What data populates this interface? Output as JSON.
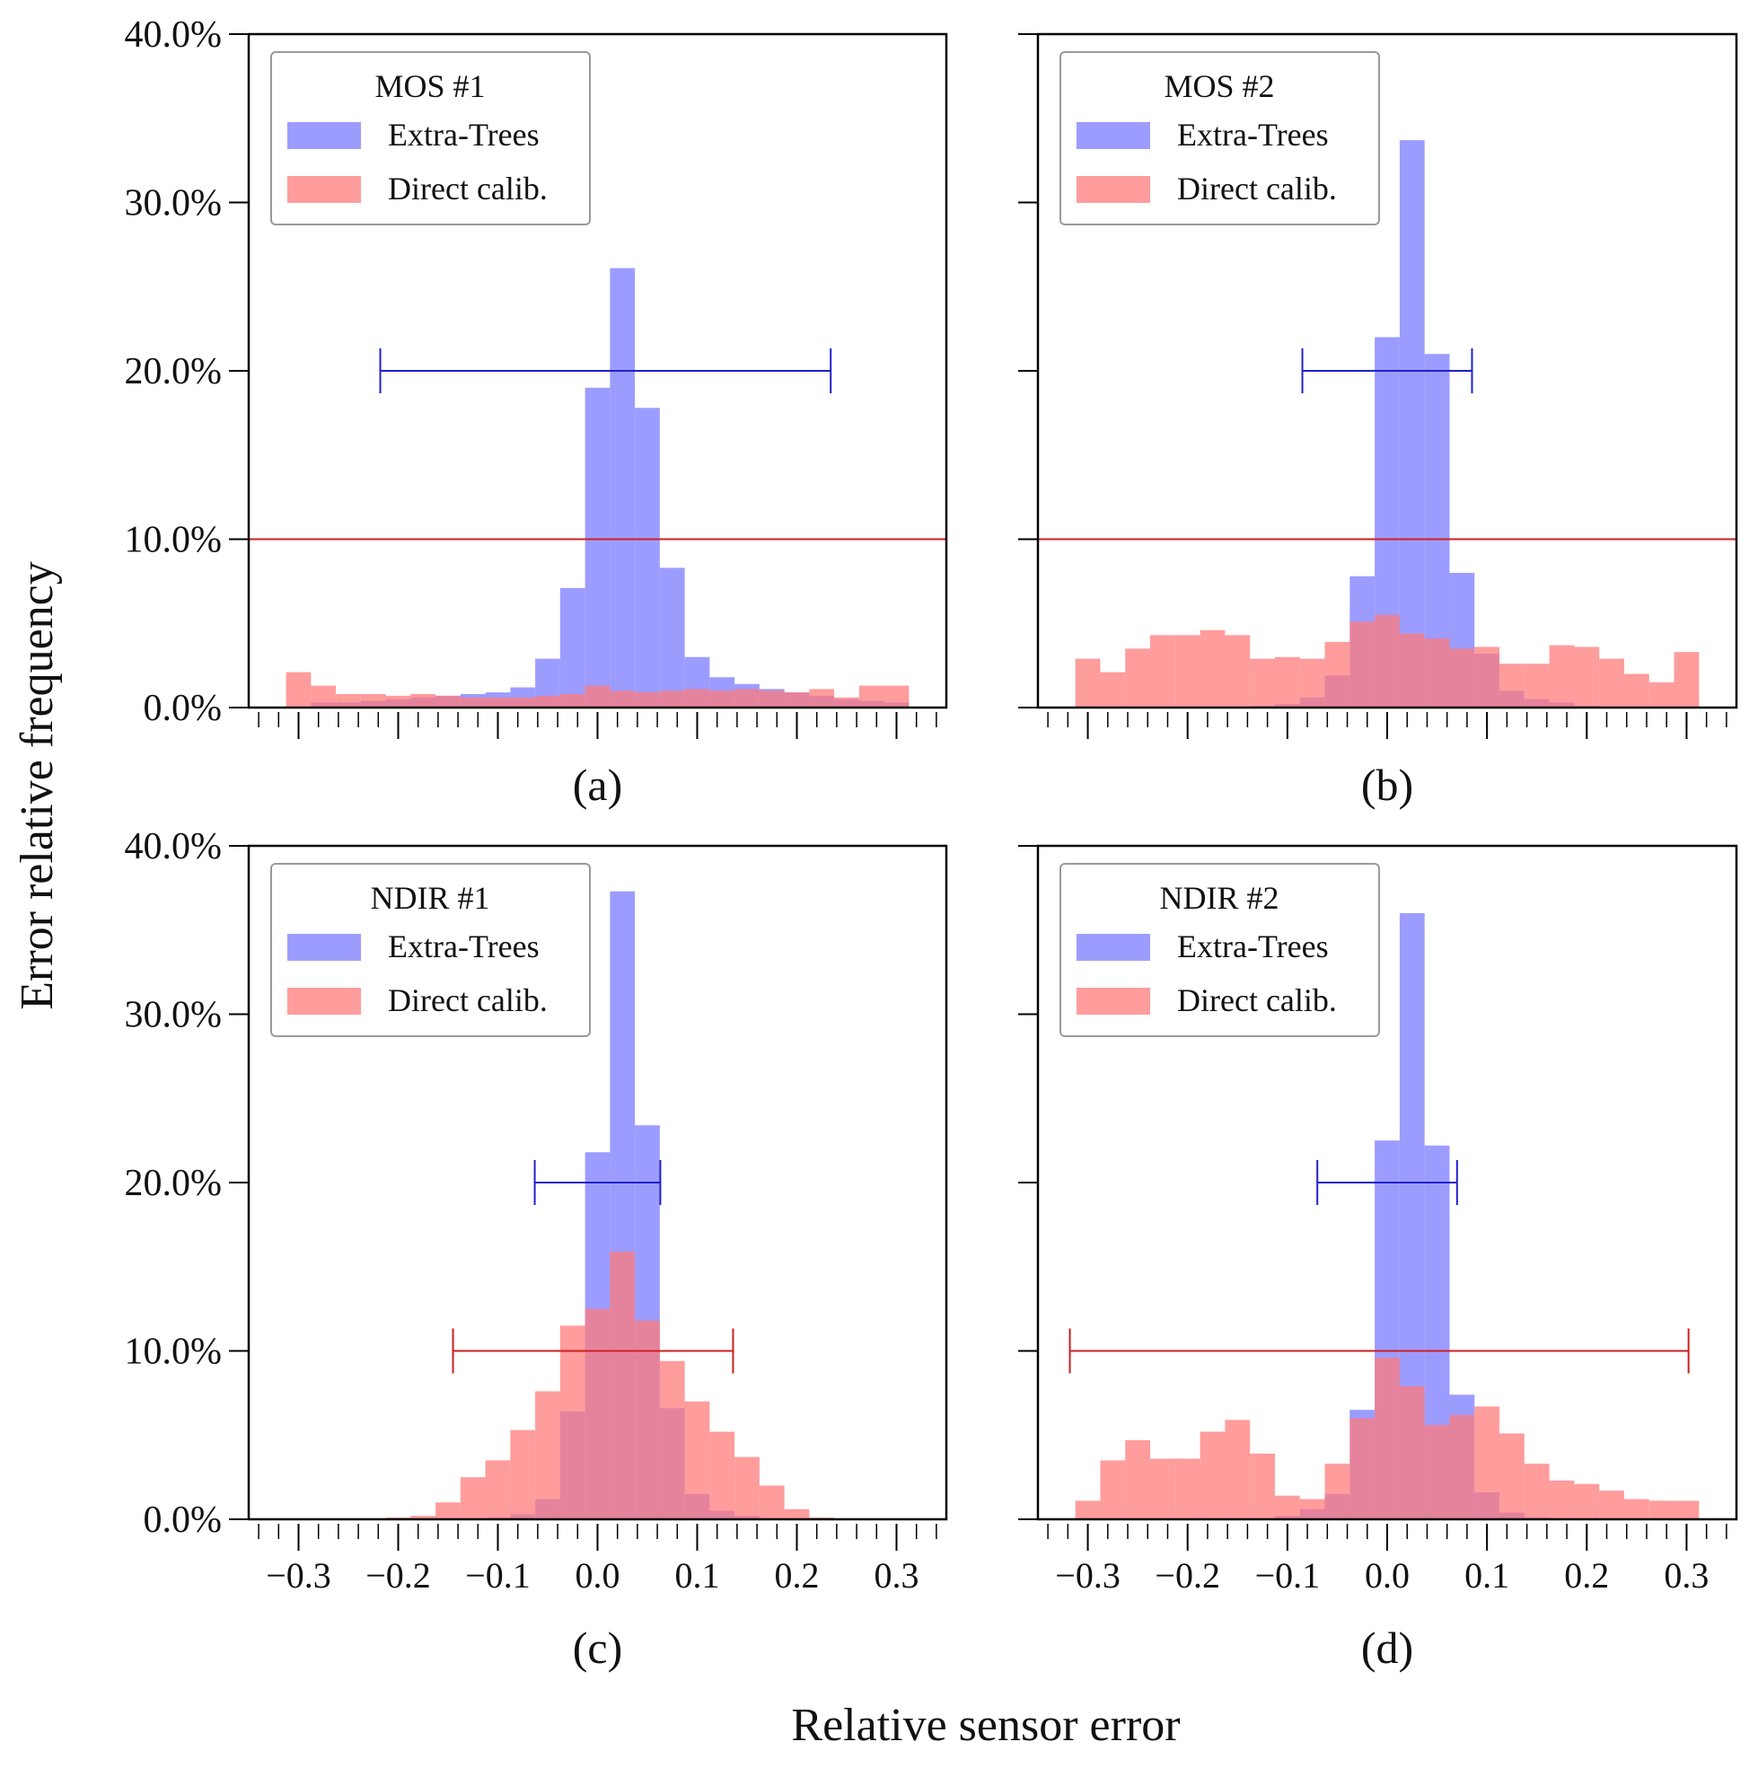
{
  "figure": {
    "ylabel": "Error relative frequency",
    "xlabel": "Relative sensor error",
    "colors": {
      "extra_trees": "#7b7bff",
      "direct_calib": "#ff7b7b",
      "extra_trees_errorbar": "#2020cc",
      "direct_calib_errorbar": "#cc2020",
      "reference_line": "#cc2020",
      "frame": "#000000"
    }
  },
  "chart_data": [
    {
      "type": "bar",
      "panel_label": "(a)",
      "legend_title": "MOS #1",
      "legend_placement": "top-left",
      "xlim": [
        -0.35,
        0.35
      ],
      "ylim": [
        0,
        40
      ],
      "xticks": [
        -0.3,
        -0.2,
        -0.1,
        0.0,
        0.1,
        0.2,
        0.3
      ],
      "xtick_labels_shown": false,
      "yticks": [
        0,
        10,
        20,
        30,
        40
      ],
      "ytick_labels": [
        "0.0%",
        "10.0%",
        "20.0%",
        "30.0%",
        "40.0%"
      ],
      "ytick_labels_shown": true,
      "bin_edges": [
        -0.3125,
        -0.2875,
        -0.2625,
        -0.2375,
        -0.2125,
        -0.1875,
        -0.1625,
        -0.1375,
        -0.1125,
        -0.0875,
        -0.0625,
        -0.0375,
        -0.0125,
        0.0125,
        0.0375,
        0.0625,
        0.0875,
        0.1125,
        0.1375,
        0.1625,
        0.1875,
        0.2125,
        0.2375,
        0.2625,
        0.2875,
        0.3125
      ],
      "series": [
        {
          "name": "Extra-Trees",
          "values": [
            0,
            0.3,
            0.3,
            0.4,
            0.5,
            0.6,
            0.7,
            0.8,
            0.9,
            1.2,
            2.9,
            7.1,
            19.0,
            26.1,
            17.8,
            8.3,
            3.0,
            1.8,
            1.4,
            1.1,
            0.9,
            0.7,
            0.5,
            0.4,
            0.3
          ]
        },
        {
          "name": "Direct calib.",
          "values": [
            2.1,
            1.3,
            0.8,
            0.8,
            0.7,
            0.8,
            0.7,
            0.6,
            0.6,
            0.6,
            0.7,
            0.8,
            1.3,
            1.0,
            0.9,
            1.0,
            1.1,
            1.0,
            1.1,
            1.0,
            0.9,
            1.1,
            0.6,
            1.3,
            1.3
          ]
        }
      ],
      "reference_line_y": 10.0,
      "error_bars": [
        {
          "series": "Extra-Trees",
          "y": 20.0,
          "x_low": -0.218,
          "x_high": 0.234
        }
      ]
    },
    {
      "type": "bar",
      "panel_label": "(b)",
      "legend_title": "MOS #2",
      "legend_placement": "top-left",
      "xlim": [
        -0.35,
        0.35
      ],
      "ylim": [
        0,
        40
      ],
      "xticks": [
        -0.3,
        -0.2,
        -0.1,
        0.0,
        0.1,
        0.2,
        0.3
      ],
      "xtick_labels_shown": false,
      "yticks": [
        0,
        10,
        20,
        30,
        40
      ],
      "ytick_labels": [
        "0.0%",
        "10.0%",
        "20.0%",
        "30.0%",
        "40.0%"
      ],
      "ytick_labels_shown": false,
      "bin_edges": [
        -0.3125,
        -0.2875,
        -0.2625,
        -0.2375,
        -0.2125,
        -0.1875,
        -0.1625,
        -0.1375,
        -0.1125,
        -0.0875,
        -0.0625,
        -0.0375,
        -0.0125,
        0.0125,
        0.0375,
        0.0625,
        0.0875,
        0.1125,
        0.1375,
        0.1625,
        0.1875,
        0.2125,
        0.2375,
        0.2625,
        0.2875,
        0.3125
      ],
      "series": [
        {
          "name": "Extra-Trees",
          "values": [
            0,
            0,
            0,
            0,
            0,
            0,
            0,
            0.1,
            0.2,
            0.6,
            1.9,
            7.8,
            22.0,
            33.7,
            21.0,
            8.0,
            3.2,
            1.0,
            0.5,
            0.3,
            0.1,
            0,
            0,
            0,
            0
          ]
        },
        {
          "name": "Direct calib.",
          "values": [
            2.9,
            2.1,
            3.5,
            4.3,
            4.3,
            4.6,
            4.3,
            2.9,
            3.0,
            2.9,
            3.9,
            5.1,
            5.5,
            4.4,
            4.1,
            3.5,
            3.6,
            2.6,
            2.6,
            3.7,
            3.6,
            2.9,
            2.0,
            1.5,
            3.3
          ]
        }
      ],
      "reference_line_y": 10.0,
      "error_bars": [
        {
          "series": "Extra-Trees",
          "y": 20.0,
          "x_low": -0.085,
          "x_high": 0.085
        }
      ]
    },
    {
      "type": "bar",
      "panel_label": "(c)",
      "legend_title": "NDIR #1",
      "legend_placement": "top-left",
      "xlim": [
        -0.35,
        0.35
      ],
      "ylim": [
        0,
        40
      ],
      "xticks": [
        -0.3,
        -0.2,
        -0.1,
        0.0,
        0.1,
        0.2,
        0.3
      ],
      "xtick_labels": [
        "−0.3",
        "−0.2",
        "−0.1",
        "0.0",
        "0.1",
        "0.2",
        "0.3"
      ],
      "xtick_labels_shown": true,
      "yticks": [
        0,
        10,
        20,
        30,
        40
      ],
      "ytick_labels": [
        "0.0%",
        "10.0%",
        "20.0%",
        "30.0%",
        "40.0%"
      ],
      "ytick_labels_shown": true,
      "bin_edges": [
        -0.3125,
        -0.2875,
        -0.2625,
        -0.2375,
        -0.2125,
        -0.1875,
        -0.1625,
        -0.1375,
        -0.1125,
        -0.0875,
        -0.0625,
        -0.0375,
        -0.0125,
        0.0125,
        0.0375,
        0.0625,
        0.0875,
        0.1125,
        0.1375,
        0.1625,
        0.1875,
        0.2125,
        0.2375,
        0.2625,
        0.2875,
        0.3125
      ],
      "series": [
        {
          "name": "Extra-Trees",
          "values": [
            0,
            0,
            0,
            0,
            0,
            0,
            0,
            0,
            0.1,
            0.3,
            1.2,
            6.4,
            21.8,
            37.3,
            23.4,
            6.6,
            1.5,
            0.5,
            0.2,
            0,
            0,
            0,
            0,
            0,
            0
          ]
        },
        {
          "name": "Direct calib.",
          "values": [
            0,
            0,
            0,
            0,
            0.1,
            0.2,
            1.0,
            2.5,
            3.5,
            5.3,
            7.6,
            11.5,
            12.5,
            15.9,
            11.8,
            9.4,
            7.0,
            5.2,
            3.7,
            2.0,
            0.6,
            0.1,
            0,
            0,
            0
          ]
        }
      ],
      "error_bars": [
        {
          "series": "Extra-Trees",
          "y": 20.0,
          "x_low": -0.063,
          "x_high": 0.063
        },
        {
          "series": "Direct calib.",
          "y": 10.0,
          "x_low": -0.145,
          "x_high": 0.136
        }
      ]
    },
    {
      "type": "bar",
      "panel_label": "(d)",
      "legend_title": "NDIR #2",
      "legend_placement": "top-left",
      "xlim": [
        -0.35,
        0.35
      ],
      "ylim": [
        0,
        40
      ],
      "xticks": [
        -0.3,
        -0.2,
        -0.1,
        0.0,
        0.1,
        0.2,
        0.3
      ],
      "xtick_labels": [
        "−0.3",
        "−0.2",
        "−0.1",
        "0.0",
        "0.1",
        "0.2",
        "0.3"
      ],
      "xtick_labels_shown": true,
      "yticks": [
        0,
        10,
        20,
        30,
        40
      ],
      "ytick_labels": [
        "0.0%",
        "10.0%",
        "20.0%",
        "30.0%",
        "40.0%"
      ],
      "ytick_labels_shown": false,
      "bin_edges": [
        -0.3125,
        -0.2875,
        -0.2625,
        -0.2375,
        -0.2125,
        -0.1875,
        -0.1625,
        -0.1375,
        -0.1125,
        -0.0875,
        -0.0625,
        -0.0375,
        -0.0125,
        0.0125,
        0.0375,
        0.0625,
        0.0875,
        0.1125,
        0.1375,
        0.1625,
        0.1875,
        0.2125,
        0.2375,
        0.2625,
        0.2875,
        0.3125
      ],
      "series": [
        {
          "name": "Extra-Trees",
          "values": [
            0,
            0,
            0,
            0,
            0,
            0,
            0,
            0,
            0.2,
            0.6,
            1.5,
            6.5,
            22.5,
            36.0,
            22.2,
            7.4,
            1.6,
            0.4,
            0.1,
            0,
            0,
            0,
            0,
            0,
            0
          ]
        },
        {
          "name": "Direct calib.",
          "values": [
            1.1,
            3.5,
            4.7,
            3.6,
            3.6,
            5.2,
            5.9,
            3.9,
            1.4,
            1.2,
            3.3,
            6.0,
            9.6,
            7.9,
            5.6,
            6.2,
            6.7,
            5.1,
            3.3,
            2.3,
            2.1,
            1.7,
            1.2,
            1.1,
            1.1
          ]
        }
      ],
      "error_bars": [
        {
          "series": "Extra-Trees",
          "y": 20.0,
          "x_low": -0.07,
          "x_high": 0.07
        },
        {
          "series": "Direct calib.",
          "y": 10.0,
          "x_low": -0.318,
          "x_high": 0.302
        }
      ]
    }
  ]
}
